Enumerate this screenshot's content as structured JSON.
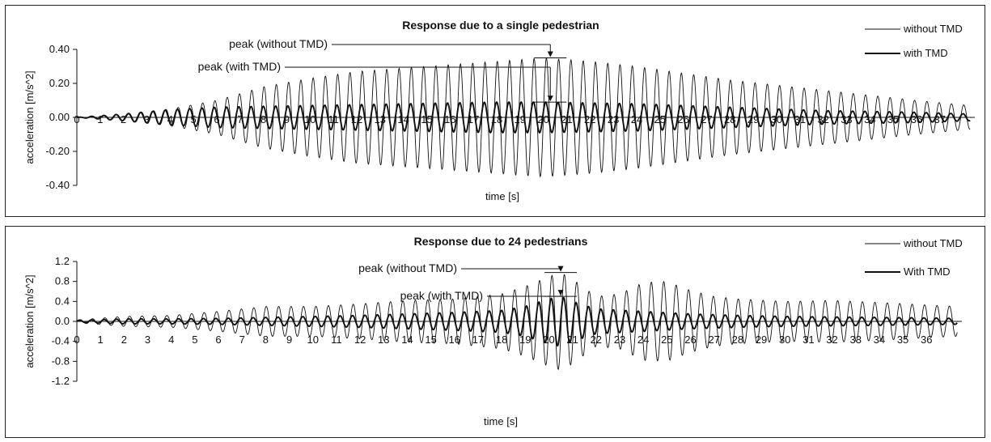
{
  "chart_data": [
    {
      "type": "line",
      "title": "Response due to a single pedestrian",
      "xlabel": "time [s]",
      "ylabel": "acceleration [m/s^2]",
      "ylim": [
        -0.4,
        0.4
      ],
      "yticks": [
        0.4,
        0.2,
        0.0,
        -0.2,
        -0.4
      ],
      "ytick_labels": [
        "0.40",
        "0.20",
        "0.00",
        "-0.20",
        "-0.40"
      ],
      "xlim": [
        0,
        38.5
      ],
      "xtick_labels": [
        "0",
        "1",
        "2",
        "3",
        "4",
        "5",
        "6",
        "7",
        "8",
        "9",
        "10",
        "11",
        "12",
        "13",
        "14",
        "15",
        "16",
        "17",
        "18",
        "19",
        "20",
        "21",
        "22",
        "23",
        "24",
        "25",
        "26",
        "27",
        "28",
        "29",
        "30",
        "31",
        "32",
        "33",
        "34",
        "35",
        "36",
        "37"
      ],
      "grid": false,
      "legend_position": "top-right",
      "series": [
        {
          "name": "without TMD",
          "style": "thin",
          "envelope": {
            "t": [
              0,
              2,
              4,
              6,
              8,
              10,
              12,
              14,
              16,
              18,
              20,
              22,
              24,
              26,
              28,
              30,
              32,
              34,
              36,
              38.3
            ],
            "amp": [
              0.0,
              0.02,
              0.05,
              0.1,
              0.18,
              0.23,
              0.27,
              0.29,
              0.31,
              0.33,
              0.35,
              0.33,
              0.3,
              0.26,
              0.22,
              0.19,
              0.16,
              0.13,
              0.1,
              0.07
            ]
          }
        },
        {
          "name": "with TMD",
          "style": "thick",
          "envelope": {
            "t": [
              0,
              2,
              4,
              6,
              8,
              10,
              12,
              14,
              16,
              18,
              20,
              22,
              24,
              26,
              28,
              30,
              32,
              34,
              36,
              38.3
            ],
            "amp": [
              0.0,
              0.02,
              0.045,
              0.06,
              0.065,
              0.07,
              0.075,
              0.08,
              0.085,
              0.09,
              0.09,
              0.085,
              0.08,
              0.07,
              0.06,
              0.05,
              0.04,
              0.035,
              0.03,
              0.02
            ]
          }
        }
      ],
      "annotations": [
        {
          "label": "peak (without TMD)",
          "x": 20.3,
          "y": 0.35
        },
        {
          "label": "peak (with TMD)",
          "x": 20.3,
          "y": 0.09
        }
      ]
    },
    {
      "type": "line",
      "title": "Response due to 24 pedestrians",
      "xlabel": "time [s]",
      "ylabel": "acceleration [m/s^2]",
      "ylim": [
        -1.2,
        1.2
      ],
      "yticks": [
        1.2,
        0.8,
        0.4,
        0.0,
        -0.4,
        -0.8,
        -1.2
      ],
      "ytick_labels": [
        "1.2",
        "0.8",
        "0.4",
        "0.0",
        "-0.4",
        "-0.8",
        "-1.2"
      ],
      "xlim": [
        0,
        37.5
      ],
      "xtick_labels": [
        "0",
        "1",
        "2",
        "3",
        "4",
        "5",
        "6",
        "7",
        "8",
        "9",
        "10",
        "11",
        "12",
        "13",
        "14",
        "15",
        "16",
        "17",
        "18",
        "19",
        "20",
        "21",
        "22",
        "23",
        "24",
        "25",
        "26",
        "27",
        "28",
        "29",
        "30",
        "31",
        "32",
        "33",
        "34",
        "35",
        "36"
      ],
      "grid": false,
      "legend_position": "top-right",
      "series": [
        {
          "name": "without TMD",
          "style": "thin",
          "envelope": {
            "t": [
              0,
              2,
              4,
              6,
              8,
              10,
              12,
              14,
              16,
              18,
              19,
              20,
              20.5,
              21,
              22,
              23,
              24,
              25,
              26,
              27,
              28,
              30,
              32,
              34,
              36,
              37.3
            ],
            "amp": [
              0.03,
              0.1,
              0.12,
              0.2,
              0.3,
              0.3,
              0.35,
              0.42,
              0.45,
              0.55,
              0.7,
              0.9,
              0.98,
              0.85,
              0.5,
              0.55,
              0.78,
              0.8,
              0.62,
              0.5,
              0.45,
              0.4,
              0.42,
              0.38,
              0.33,
              0.3
            ]
          }
        },
        {
          "name": "With TMD",
          "style": "thick",
          "envelope": {
            "t": [
              0,
              2,
              4,
              6,
              8,
              10,
              12,
              14,
              16,
              18,
              19,
              20,
              20.5,
              21,
              22,
              24,
              26,
              28,
              30,
              32,
              34,
              36,
              37.3
            ],
            "amp": [
              0.02,
              0.05,
              0.05,
              0.06,
              0.08,
              0.1,
              0.12,
              0.15,
              0.18,
              0.22,
              0.3,
              0.45,
              0.5,
              0.4,
              0.25,
              0.2,
              0.15,
              0.12,
              0.1,
              0.09,
              0.08,
              0.07,
              0.06
            ]
          }
        }
      ],
      "annotations": [
        {
          "label": "peak (without TMD)",
          "x": 20.5,
          "y": 0.98
        },
        {
          "label": "peak (with TMD)",
          "x": 20.5,
          "y": 0.5
        }
      ]
    }
  ]
}
